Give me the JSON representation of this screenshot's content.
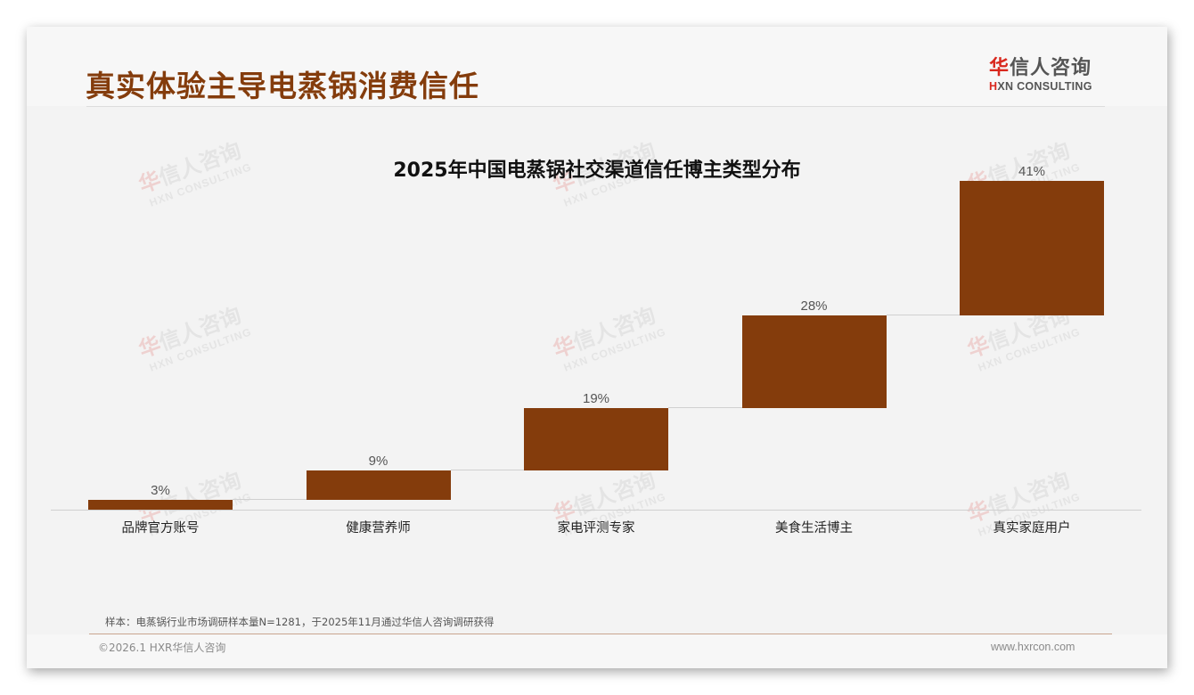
{
  "header": {
    "title": "真实体验主导电蒸锅消费信任",
    "logo": {
      "cn_accent": "华",
      "cn_rest": "信人咨询",
      "en_accent": "H",
      "en_rest": "XN CONSULTING"
    }
  },
  "watermark": {
    "cn_accent": "华",
    "cn_rest": "信人咨询",
    "en": "HXN CONSULTING"
  },
  "colors": {
    "title": "#843c0c",
    "bar": "#843c0c",
    "logo_accent": "#d9281e",
    "background": "#f3f3f3"
  },
  "chart_data": {
    "type": "bar",
    "subtype": "waterfall",
    "title": "2025年中国电蒸锅社交渠道信任博主类型分布",
    "categories": [
      "品牌官方账号",
      "健康营养师",
      "家电评测专家",
      "美食生活博主",
      "真实家庭用户"
    ],
    "values": [
      3,
      9,
      19,
      28,
      41
    ],
    "value_labels": [
      "3%",
      "9%",
      "19%",
      "28%",
      "41%"
    ],
    "cumulative_start": [
      0,
      3,
      12,
      31,
      59
    ],
    "cumulative_end": [
      3,
      12,
      31,
      59,
      100
    ],
    "unit": "%",
    "xlabel": "",
    "ylabel": "",
    "ylim": [
      0,
      100
    ],
    "grid": false,
    "legend": "none",
    "connectors": true
  },
  "footer": {
    "source": "样本：电蒸锅行业市场调研样本量N=1281，于2025年11月通过华信人咨询调研获得",
    "copyright": "©2026.1 HXR华信人咨询",
    "website": "www.hxrcon.com"
  }
}
